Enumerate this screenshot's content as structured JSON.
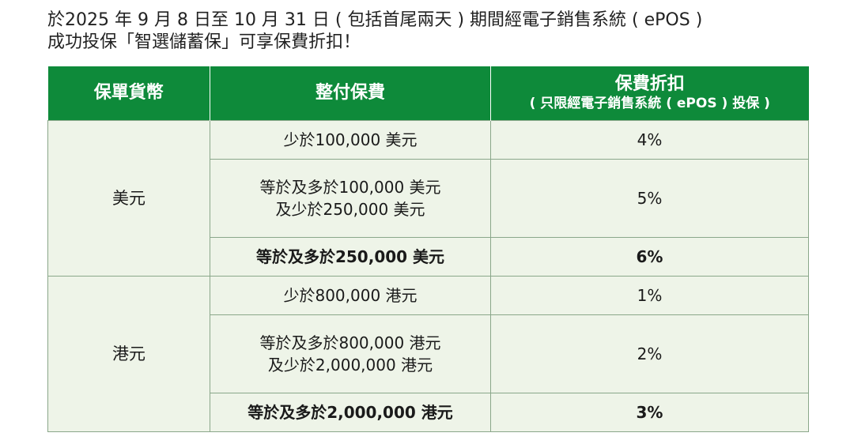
{
  "intro": {
    "line1": "於2025 年 9 月 8 日至 10 月 31 日 ( 包括首尾兩天 ) 期間經電子銷售系統 ( ePOS )",
    "line2": "成功投保「智選儲蓄保」可享保費折扣！"
  },
  "table": {
    "headers": {
      "currency": "保單貨幣",
      "premium": "整付保費",
      "discount": "保費折扣",
      "discount_note": "( 只限經電子銷售系統 ( ePOS ) 投保 )"
    },
    "groups": [
      {
        "currency": "美元",
        "rows": [
          {
            "premium_line1": "少於100,000 美元",
            "premium_line2": "",
            "discount": "4%",
            "bold": false
          },
          {
            "premium_line1": "等於及多於100,000 美元",
            "premium_line2": "及少於250,000 美元",
            "discount": "5%",
            "bold": false
          },
          {
            "premium_line1": "等於及多於250,000 美元",
            "premium_line2": "",
            "discount": "6%",
            "bold": true
          }
        ]
      },
      {
        "currency": "港元",
        "rows": [
          {
            "premium_line1": "少於800,000 港元",
            "premium_line2": "",
            "discount": "1%",
            "bold": false
          },
          {
            "premium_line1": "等於及多於800,000 港元",
            "premium_line2": "及少於2,000,000 港元",
            "discount": "2%",
            "bold": false
          },
          {
            "premium_line1": "等於及多於2,000,000 港元",
            "premium_line2": "",
            "discount": "3%",
            "bold": true
          }
        ]
      }
    ]
  },
  "colors": {
    "header_bg": "#0e8a3a",
    "cell_bg": "#eef4e8"
  }
}
